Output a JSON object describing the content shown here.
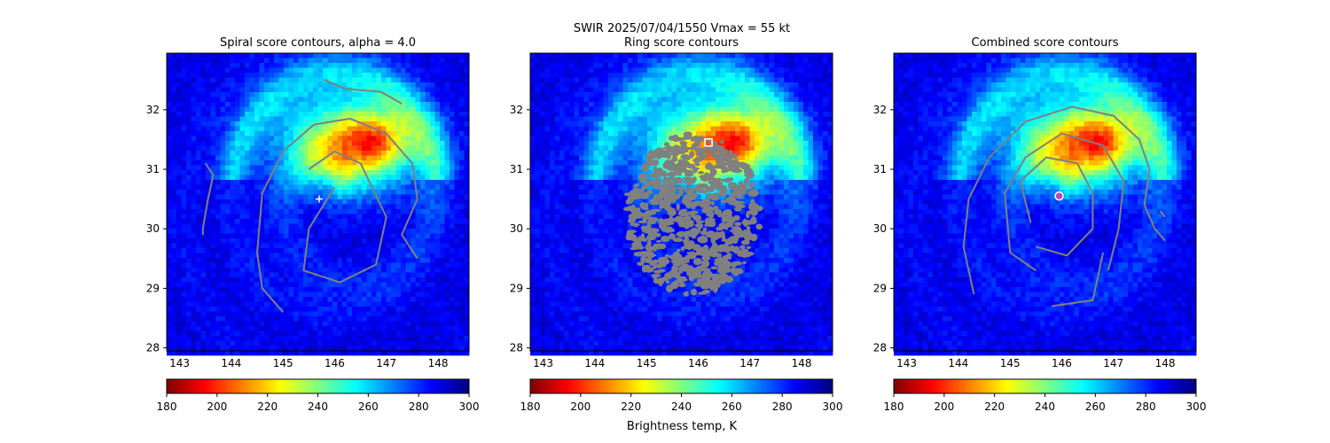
{
  "suptitle_line1": "SWIR  2025/07/04/1550    Vmax = 55 kt",
  "colorbar_label": "Brightness temp, K",
  "colormap": "jet_r",
  "chart_data": [
    {
      "type": "heatmap",
      "title": "Spiral score contours, alpha =  4.0",
      "xlim": [
        142.75,
        148.6
      ],
      "ylim": [
        27.95,
        32.95
      ],
      "xticks": [
        "143",
        "144",
        "145",
        "146",
        "147",
        "148"
      ],
      "yticks": [
        "28",
        "29",
        "30",
        "31",
        "32"
      ],
      "colorbar": {
        "vmin": 180,
        "vmax": 300,
        "ticks": [
          "180",
          "200",
          "220",
          "240",
          "260",
          "280",
          "300"
        ]
      },
      "contour_color": "#808080",
      "marker": {
        "symbol": "plus",
        "lon": 145.7,
        "lat": 30.5,
        "color": "#ffffff"
      }
    },
    {
      "type": "heatmap",
      "title": "Ring score contours",
      "xlim": [
        142.75,
        148.6
      ],
      "ylim": [
        27.95,
        32.95
      ],
      "xticks": [
        "143",
        "144",
        "145",
        "146",
        "147",
        "148"
      ],
      "yticks": [
        "28",
        "29",
        "30",
        "31",
        "32"
      ],
      "colorbar": {
        "vmin": 180,
        "vmax": 300,
        "ticks": [
          "180",
          "200",
          "220",
          "240",
          "260",
          "280",
          "300"
        ]
      },
      "contour_color": "#808080",
      "marker": {
        "symbol": "square",
        "lon": 146.2,
        "lat": 31.45,
        "color": "#ffffff"
      }
    },
    {
      "type": "heatmap",
      "title": "Combined score contours",
      "xlim": [
        142.75,
        148.6
      ],
      "ylim": [
        27.95,
        32.95
      ],
      "xticks": [
        "143",
        "144",
        "145",
        "146",
        "147",
        "148"
      ],
      "yticks": [
        "28",
        "29",
        "30",
        "31",
        "32"
      ],
      "colorbar": {
        "vmin": 180,
        "vmax": 300,
        "ticks": [
          "180",
          "200",
          "220",
          "240",
          "260",
          "280",
          "300"
        ]
      },
      "contour_color": "#808080",
      "marker": {
        "symbol": "circle",
        "lon": 145.95,
        "lat": 30.55,
        "color": "#c040c0"
      }
    }
  ]
}
